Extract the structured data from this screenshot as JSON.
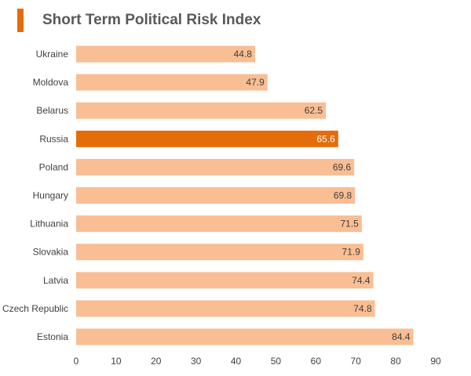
{
  "colors": {
    "bar": "#F9BE93",
    "highlight": "#E46C0A",
    "title_marker": "#E46C0A"
  },
  "chart_data": {
    "type": "bar",
    "orientation": "horizontal",
    "title": "Short Term Political Risk Index",
    "categories": [
      "Ukraine",
      "Moldova",
      "Belarus",
      "Russia",
      "Poland",
      "Hungary",
      "Lithuania",
      "Slovakia",
      "Latvia",
      "Czech Republic",
      "Estonia"
    ],
    "values": [
      44.8,
      47.9,
      62.5,
      65.6,
      69.6,
      69.8,
      71.5,
      71.9,
      74.4,
      74.8,
      84.4
    ],
    "highlight": "Russia",
    "xlim": [
      0,
      90
    ],
    "xticks": [
      0,
      10,
      20,
      30,
      40,
      50,
      60,
      70,
      80,
      90
    ],
    "xlabel": "",
    "ylabel": "",
    "grid": false,
    "legend": "none"
  }
}
